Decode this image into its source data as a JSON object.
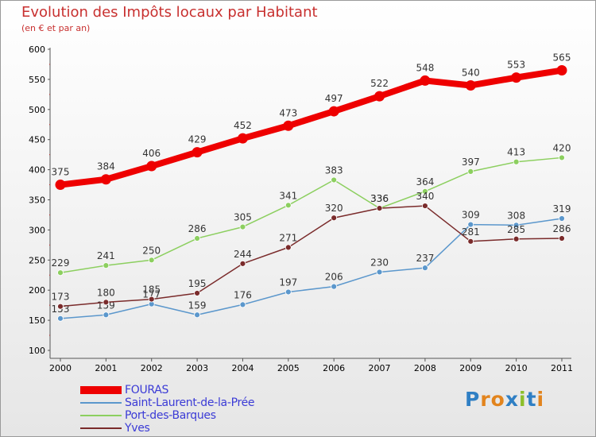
{
  "header": {
    "title": "Evolution des Impôts locaux par Habitant",
    "subtitle": "(en € et par an)"
  },
  "logo": {
    "text": "Proxiti",
    "letter_colors": [
      "#2f7fc4",
      "#e2841d",
      "#e2841d",
      "#2f7fc4",
      "#8cbf2a",
      "#2f7fc4",
      "#e2841d"
    ]
  },
  "chart_data": {
    "type": "line",
    "x": [
      "2000",
      "2001",
      "2002",
      "2003",
      "2004",
      "2005",
      "2006",
      "2007",
      "2008",
      "2009",
      "2010",
      "2011"
    ],
    "ylim": [
      100,
      600
    ],
    "yticks": [
      "100",
      "150",
      "200",
      "250",
      "300",
      "350",
      "400",
      "450",
      "500",
      "550",
      "600"
    ],
    "grid": false,
    "legend_position": "bottom-left",
    "series": [
      {
        "name": "FOURAS",
        "color": "#ee0000",
        "emphasis": true,
        "values": [
          375,
          384,
          406,
          429,
          452,
          473,
          497,
          522,
          548,
          540,
          553,
          565
        ]
      },
      {
        "name": "Saint-Laurent-de-la-Prée",
        "color": "#5b97cc",
        "values": [
          153,
          159,
          177,
          159,
          176,
          197,
          206,
          230,
          237,
          309,
          308,
          319
        ]
      },
      {
        "name": "Port-des-Barques",
        "color": "#8ccf5f",
        "values": [
          229,
          241,
          250,
          286,
          305,
          341,
          383,
          336,
          364,
          397,
          413,
          420
        ]
      },
      {
        "name": "Yves",
        "color": "#7a2b2b",
        "values": [
          173,
          180,
          185,
          195,
          244,
          271,
          320,
          336,
          340,
          281,
          285,
          286
        ]
      }
    ]
  }
}
